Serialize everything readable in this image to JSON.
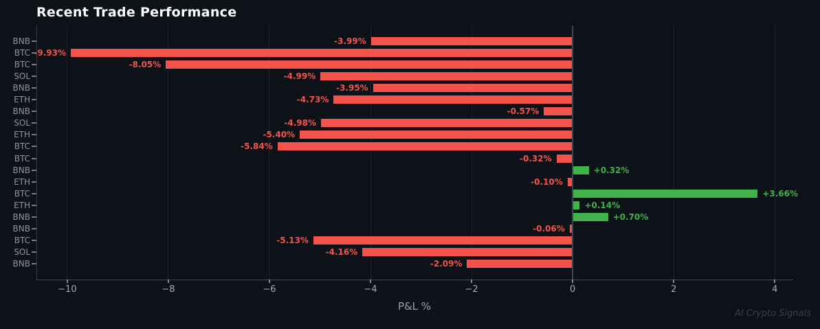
{
  "chart_data": {
    "type": "bar",
    "orientation": "horizontal",
    "title": "Recent Trade Performance",
    "xlabel": "P&L %",
    "ylabel": "",
    "watermark": "AI Crypto Signals",
    "grid": "vertical-only",
    "legend": "none",
    "xlim": [
      -10.61,
      4.35
    ],
    "x_ticks": [
      -10,
      -8,
      -6,
      -4,
      -2,
      0,
      2,
      4
    ],
    "x_tick_labels": [
      "−10",
      "−8",
      "−6",
      "−4",
      "−2",
      "0",
      "2",
      "4"
    ],
    "bars": [
      {
        "symbol": "BNB",
        "value": -3.99,
        "label": "-3.99%"
      },
      {
        "symbol": "BTC",
        "value": -9.93,
        "label": "-9.93%"
      },
      {
        "symbol": "BTC",
        "value": -8.05,
        "label": "-8.05%"
      },
      {
        "symbol": "SOL",
        "value": -4.99,
        "label": "-4.99%"
      },
      {
        "symbol": "BNB",
        "value": -3.95,
        "label": "-3.95%"
      },
      {
        "symbol": "ETH",
        "value": -4.73,
        "label": "-4.73%"
      },
      {
        "symbol": "BNB",
        "value": -0.57,
        "label": "-0.57%"
      },
      {
        "symbol": "SOL",
        "value": -4.98,
        "label": "-4.98%"
      },
      {
        "symbol": "ETH",
        "value": -5.4,
        "label": "-5.40%"
      },
      {
        "symbol": "BTC",
        "value": -5.84,
        "label": "-5.84%"
      },
      {
        "symbol": "BTC",
        "value": -0.32,
        "label": "-0.32%"
      },
      {
        "symbol": "BNB",
        "value": 0.32,
        "label": "+0.32%"
      },
      {
        "symbol": "ETH",
        "value": -0.1,
        "label": "-0.10%"
      },
      {
        "symbol": "BTC",
        "value": 3.66,
        "label": "+3.66%"
      },
      {
        "symbol": "ETH",
        "value": 0.14,
        "label": "+0.14%"
      },
      {
        "symbol": "BNB",
        "value": 0.7,
        "label": "+0.70%"
      },
      {
        "symbol": "BNB",
        "value": -0.06,
        "label": "-0.06%"
      },
      {
        "symbol": "BTC",
        "value": -5.13,
        "label": "-5.13%"
      },
      {
        "symbol": "SOL",
        "value": -4.16,
        "label": "-4.16%"
      },
      {
        "symbol": "BNB",
        "value": -2.09,
        "label": "-2.09%"
      }
    ],
    "colors": {
      "negative": "#f4534c",
      "positive": "#3fb24a",
      "background": "#0d1118",
      "grid": "#1c222c",
      "zero_line": "#3d4450",
      "axis": "#454c58",
      "tick_label": "#a7adb6",
      "category_label": "#8f959e",
      "title": "#ffffff",
      "watermark": "#39404d"
    }
  }
}
